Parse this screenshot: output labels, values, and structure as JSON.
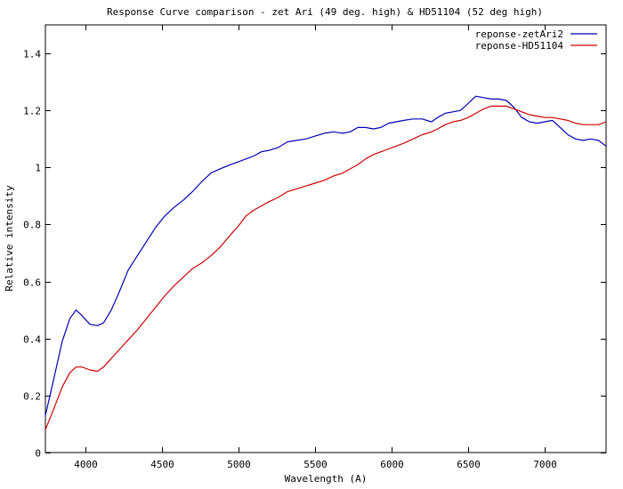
{
  "chart_data": {
    "type": "line",
    "title": "Response Curve comparison - zet Ari (49 deg. high) & HD51104 (52 deg high)",
    "xlabel": "Wavelength (A)",
    "ylabel": "Relative intensity",
    "xlim": [
      3740,
      7400
    ],
    "ylim": [
      0,
      1.5
    ],
    "x_ticks": [
      4000,
      4500,
      5000,
      5500,
      6000,
      6500,
      7000
    ],
    "x_tick_labels": [
      "4000",
      "4500",
      "5000",
      "5500",
      "6000",
      "6500",
      "7000"
    ],
    "y_ticks": [
      0,
      0.2,
      0.4,
      0.6,
      0.8,
      1.0,
      1.2,
      1.4
    ],
    "y_tick_labels": [
      "0",
      "0.2",
      "0.4",
      "0.6",
      "0.8",
      "1",
      "1.2",
      "1.4"
    ],
    "grid": false,
    "legend": "top-right",
    "series": [
      {
        "name": "reponse-zetAri2",
        "color": "#0000b4",
        "x": [
          3740,
          3800,
          3850,
          3900,
          3940,
          3980,
          4030,
          4080,
          4120,
          4170,
          4220,
          4280,
          4340,
          4400,
          4460,
          4520,
          4580,
          4640,
          4700,
          4760,
          4820,
          4880,
          4950,
          5000,
          5050,
          5100,
          5150,
          5200,
          5260,
          5320,
          5380,
          5440,
          5500,
          5560,
          5620,
          5680,
          5730,
          5780,
          5830,
          5880,
          5930,
          5980,
          6030,
          6080,
          6140,
          6200,
          6260,
          6300,
          6350,
          6400,
          6450,
          6500,
          6550,
          6600,
          6650,
          6700,
          6750,
          6800,
          6850,
          6900,
          6950,
          7000,
          7050,
          7100,
          7150,
          7200,
          7250,
          7300,
          7350,
          7400
        ],
        "y": [
          0.13,
          0.27,
          0.39,
          0.47,
          0.5,
          0.48,
          0.45,
          0.445,
          0.455,
          0.5,
          0.56,
          0.64,
          0.69,
          0.74,
          0.79,
          0.83,
          0.86,
          0.885,
          0.915,
          0.95,
          0.98,
          0.995,
          1.01,
          1.02,
          1.03,
          1.04,
          1.055,
          1.06,
          1.07,
          1.09,
          1.095,
          1.1,
          1.11,
          1.12,
          1.125,
          1.12,
          1.125,
          1.14,
          1.14,
          1.135,
          1.14,
          1.155,
          1.16,
          1.165,
          1.17,
          1.17,
          1.16,
          1.175,
          1.19,
          1.195,
          1.2,
          1.225,
          1.25,
          1.245,
          1.24,
          1.24,
          1.235,
          1.21,
          1.175,
          1.16,
          1.155,
          1.16,
          1.165,
          1.14,
          1.115,
          1.1,
          1.095,
          1.1,
          1.095,
          1.075
        ]
      },
      {
        "name": "reponse-HD51104",
        "color": "#cc0000",
        "x": [
          3740,
          3800,
          3850,
          3900,
          3940,
          3980,
          4030,
          4080,
          4120,
          4170,
          4220,
          4280,
          4340,
          4400,
          4460,
          4520,
          4580,
          4640,
          4700,
          4760,
          4820,
          4880,
          4950,
          5000,
          5050,
          5100,
          5150,
          5200,
          5260,
          5320,
          5380,
          5440,
          5500,
          5560,
          5620,
          5680,
          5730,
          5780,
          5830,
          5880,
          5930,
          5980,
          6030,
          6080,
          6140,
          6200,
          6260,
          6300,
          6350,
          6400,
          6450,
          6500,
          6550,
          6600,
          6650,
          6700,
          6750,
          6800,
          6850,
          6900,
          6950,
          7000,
          7050,
          7100,
          7150,
          7200,
          7250,
          7300,
          7350,
          7400
        ],
        "y": [
          0.08,
          0.16,
          0.23,
          0.28,
          0.3,
          0.3,
          0.29,
          0.285,
          0.3,
          0.33,
          0.36,
          0.395,
          0.43,
          0.47,
          0.51,
          0.55,
          0.585,
          0.615,
          0.645,
          0.665,
          0.69,
          0.72,
          0.765,
          0.795,
          0.83,
          0.85,
          0.865,
          0.88,
          0.895,
          0.915,
          0.925,
          0.935,
          0.945,
          0.955,
          0.97,
          0.98,
          0.995,
          1.01,
          1.03,
          1.045,
          1.055,
          1.065,
          1.075,
          1.085,
          1.1,
          1.115,
          1.125,
          1.135,
          1.15,
          1.16,
          1.165,
          1.175,
          1.19,
          1.205,
          1.215,
          1.215,
          1.215,
          1.205,
          1.195,
          1.185,
          1.18,
          1.175,
          1.175,
          1.17,
          1.165,
          1.155,
          1.15,
          1.15,
          1.15,
          1.16
        ]
      }
    ]
  }
}
